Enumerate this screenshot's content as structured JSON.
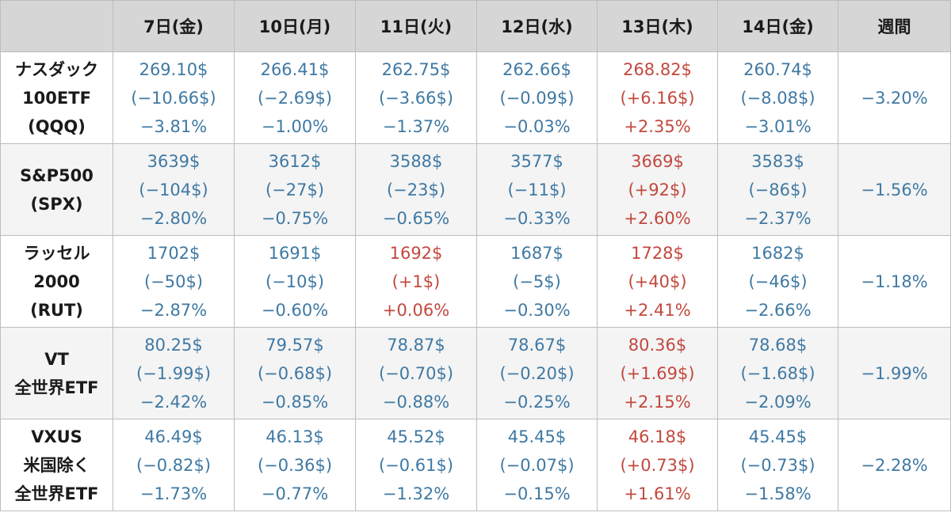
{
  "header": {
    "corner": "",
    "days": [
      "7日(金)",
      "10日(月)",
      "11日(火)",
      "12日(水)",
      "13日(木)",
      "14日(金)"
    ],
    "weekly": "週間"
  },
  "colors": {
    "down": "#3f79a3",
    "up": "#c2483e",
    "header_bg": "#d6d6d6"
  },
  "rows": [
    {
      "label": [
        "ナスダック",
        "100ETF",
        "(QQQ)"
      ],
      "cells": [
        {
          "price": "269.10$",
          "change": "(−10.66$)",
          "pct": "−3.81%",
          "dir": "down"
        },
        {
          "price": "266.41$",
          "change": "(−2.69$)",
          "pct": "−1.00%",
          "dir": "down"
        },
        {
          "price": "262.75$",
          "change": "(−3.66$)",
          "pct": "−1.37%",
          "dir": "down"
        },
        {
          "price": "262.66$",
          "change": "(−0.09$)",
          "pct": "−0.03%",
          "dir": "down"
        },
        {
          "price": "268.82$",
          "change": "(+6.16$)",
          "pct": "+2.35%",
          "dir": "up"
        },
        {
          "price": "260.74$",
          "change": "(−8.08$)",
          "pct": "−3.01%",
          "dir": "down"
        }
      ],
      "weekly": "−3.20%"
    },
    {
      "label": [
        "S&P500",
        "(SPX)"
      ],
      "cells": [
        {
          "price": "3639$",
          "change": "(−104$)",
          "pct": "−2.80%",
          "dir": "down"
        },
        {
          "price": "3612$",
          "change": "(−27$)",
          "pct": "−0.75%",
          "dir": "down"
        },
        {
          "price": "3588$",
          "change": "(−23$)",
          "pct": "−0.65%",
          "dir": "down"
        },
        {
          "price": "3577$",
          "change": "(−11$)",
          "pct": "−0.33%",
          "dir": "down"
        },
        {
          "price": "3669$",
          "change": "(+92$)",
          "pct": "+2.60%",
          "dir": "up"
        },
        {
          "price": "3583$",
          "change": "(−86$)",
          "pct": "−2.37%",
          "dir": "down"
        }
      ],
      "weekly": "−1.56%"
    },
    {
      "label": [
        "ラッセル",
        "2000",
        "(RUT)"
      ],
      "cells": [
        {
          "price": "1702$",
          "change": "(−50$)",
          "pct": "−2.87%",
          "dir": "down"
        },
        {
          "price": "1691$",
          "change": "(−10$)",
          "pct": "−0.60%",
          "dir": "down"
        },
        {
          "price": "1692$",
          "change": "(+1$)",
          "pct": "+0.06%",
          "dir": "up"
        },
        {
          "price": "1687$",
          "change": "(−5$)",
          "pct": "−0.30%",
          "dir": "down"
        },
        {
          "price": "1728$",
          "change": "(+40$)",
          "pct": "+2.41%",
          "dir": "up"
        },
        {
          "price": "1682$",
          "change": "(−46$)",
          "pct": "−2.66%",
          "dir": "down"
        }
      ],
      "weekly": "−1.18%"
    },
    {
      "label": [
        "VT",
        "全世界ETF"
      ],
      "cells": [
        {
          "price": "80.25$",
          "change": "(−1.99$)",
          "pct": "−2.42%",
          "dir": "down"
        },
        {
          "price": "79.57$",
          "change": "(−0.68$)",
          "pct": "−0.85%",
          "dir": "down"
        },
        {
          "price": "78.87$",
          "change": "(−0.70$)",
          "pct": "−0.88%",
          "dir": "down"
        },
        {
          "price": "78.67$",
          "change": "(−0.20$)",
          "pct": "−0.25%",
          "dir": "down"
        },
        {
          "price": "80.36$",
          "change": "(+1.69$)",
          "pct": "+2.15%",
          "dir": "up"
        },
        {
          "price": "78.68$",
          "change": "(−1.68$)",
          "pct": "−2.09%",
          "dir": "down"
        }
      ],
      "weekly": "−1.99%"
    },
    {
      "label": [
        "VXUS",
        "米国除く",
        "全世界ETF"
      ],
      "cells": [
        {
          "price": "46.49$",
          "change": "(−0.82$)",
          "pct": "−1.73%",
          "dir": "down"
        },
        {
          "price": "46.13$",
          "change": "(−0.36$)",
          "pct": "−0.77%",
          "dir": "down"
        },
        {
          "price": "45.52$",
          "change": "(−0.61$)",
          "pct": "−1.32%",
          "dir": "down"
        },
        {
          "price": "45.45$",
          "change": "(−0.07$)",
          "pct": "−0.15%",
          "dir": "down"
        },
        {
          "price": "46.18$",
          "change": "(+0.73$)",
          "pct": "+1.61%",
          "dir": "up"
        },
        {
          "price": "45.45$",
          "change": "(−0.73$)",
          "pct": "−1.58%",
          "dir": "down"
        }
      ],
      "weekly": "−2.28%"
    }
  ]
}
